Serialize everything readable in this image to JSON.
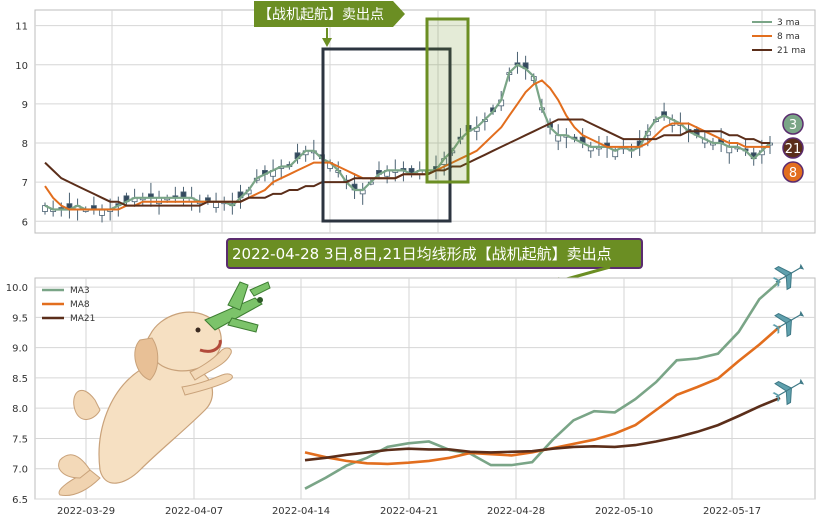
{
  "colors": {
    "ma3": "#7aa587",
    "ma8": "#e26e1e",
    "ma21": "#5b2e1a",
    "candle_up": "#ffffff",
    "candle_down": "#34495e",
    "candle_edge": "#4a6172",
    "sell_tag_fill": "#6b8e23",
    "banner_fill": "#6b8e23",
    "banner_edge": "#5b2c6f",
    "box_dark": "#2c3440",
    "box_green": "#6b8e23",
    "grid": "#d6d6d6"
  },
  "sell_tag": "【战机起航】卖出点",
  "banner": "2022-04-28 3日,8日,21日均线形成【战机起航】卖出点",
  "icons": [
    "arrow-down-icon",
    "arrow-icon",
    "dog-illustration-icon",
    "toy-plane-icon",
    "plane-icon"
  ],
  "chart_data": [
    {
      "type": "line",
      "panel": "top",
      "yticks": [
        6,
        7,
        8,
        9,
        10,
        11
      ],
      "ylim": [
        5.7,
        11.4
      ],
      "n": 90,
      "legend": [
        "3 ma",
        "8 ma",
        "21 ma"
      ],
      "legend_position": "top-right",
      "markers": [
        "3",
        "21",
        "8"
      ],
      "series": [
        {
          "name": "3 ma",
          "values": [
            6.4,
            6.3,
            6.3,
            6.3,
            6.4,
            6.3,
            6.3,
            6.3,
            6.3,
            6.4,
            6.5,
            6.6,
            6.6,
            6.6,
            6.6,
            6.6,
            6.6,
            6.6,
            6.6,
            6.5,
            6.5,
            6.5,
            6.5,
            6.4,
            6.6,
            6.8,
            7.1,
            7.2,
            7.3,
            7.4,
            7.4,
            7.6,
            7.8,
            7.8,
            7.6,
            7.5,
            7.3,
            7.0,
            6.8,
            6.8,
            7.0,
            7.2,
            7.3,
            7.3,
            7.3,
            7.2,
            7.3,
            7.3,
            7.3,
            7.6,
            7.8,
            8.1,
            8.3,
            8.4,
            8.6,
            8.8,
            9.1,
            9.8,
            10.0,
            9.9,
            9.7,
            8.9,
            8.4,
            8.2,
            8.2,
            8.1,
            8.0,
            7.9,
            7.9,
            7.9,
            7.8,
            7.9,
            7.8,
            7.9,
            8.3,
            8.6,
            8.7,
            8.6,
            8.5,
            8.3,
            8.2,
            8.1,
            8.0,
            8.0,
            7.9,
            7.9,
            7.8,
            7.6,
            7.8,
            8.0
          ]
        },
        {
          "name": "8 ma",
          "values": [
            6.9,
            6.6,
            6.4,
            6.3,
            6.3,
            6.3,
            6.3,
            6.3,
            6.3,
            6.3,
            6.4,
            6.4,
            6.5,
            6.5,
            6.5,
            6.5,
            6.5,
            6.5,
            6.5,
            6.5,
            6.5,
            6.5,
            6.5,
            6.5,
            6.5,
            6.6,
            6.7,
            6.8,
            7.0,
            7.1,
            7.2,
            7.3,
            7.4,
            7.5,
            7.5,
            7.5,
            7.4,
            7.3,
            7.2,
            7.1,
            7.1,
            7.1,
            7.1,
            7.1,
            7.2,
            7.2,
            7.2,
            7.2,
            7.3,
            7.4,
            7.5,
            7.6,
            7.7,
            7.8,
            8.0,
            8.2,
            8.4,
            8.7,
            9.0,
            9.3,
            9.5,
            9.6,
            9.4,
            9.1,
            8.7,
            8.4,
            8.2,
            8.1,
            8.0,
            7.9,
            7.9,
            7.9,
            7.9,
            7.9,
            8.0,
            8.2,
            8.4,
            8.5,
            8.5,
            8.5,
            8.4,
            8.3,
            8.2,
            8.1,
            8.0,
            8.0,
            7.9,
            7.9,
            7.9,
            7.9
          ]
        },
        {
          "name": "21 ma",
          "values": [
            7.5,
            7.3,
            7.1,
            7.0,
            6.9,
            6.8,
            6.7,
            6.6,
            6.5,
            6.5,
            6.4,
            6.4,
            6.4,
            6.4,
            6.4,
            6.4,
            6.4,
            6.4,
            6.4,
            6.4,
            6.5,
            6.5,
            6.5,
            6.5,
            6.5,
            6.6,
            6.6,
            6.6,
            6.7,
            6.7,
            6.8,
            6.8,
            6.9,
            6.9,
            7.0,
            7.0,
            7.0,
            7.0,
            7.1,
            7.1,
            7.1,
            7.1,
            7.1,
            7.1,
            7.2,
            7.2,
            7.2,
            7.2,
            7.3,
            7.3,
            7.4,
            7.4,
            7.5,
            7.6,
            7.7,
            7.8,
            7.9,
            8.0,
            8.1,
            8.2,
            8.3,
            8.4,
            8.5,
            8.6,
            8.6,
            8.6,
            8.6,
            8.5,
            8.4,
            8.3,
            8.2,
            8.1,
            8.1,
            8.1,
            8.1,
            8.1,
            8.2,
            8.2,
            8.2,
            8.3,
            8.3,
            8.3,
            8.3,
            8.3,
            8.2,
            8.2,
            8.1,
            8.1,
            8.0,
            8.0
          ]
        }
      ]
    },
    {
      "type": "line",
      "panel": "bottom",
      "xtick_labels": [
        "2022-03-29",
        "2022-04-07",
        "2022-04-14",
        "2022-04-21",
        "2022-04-28",
        "2022-05-10",
        "2022-05-17"
      ],
      "yticks": [
        6.5,
        7.0,
        7.5,
        8.0,
        8.5,
        9.0,
        9.5,
        10.0
      ],
      "ylim": [
        6.5,
        10.15
      ],
      "legend": [
        "MA3",
        "MA8",
        "MA21"
      ],
      "legend_position": "upper-left",
      "x": [
        "2022-04-14",
        "2022-04-15",
        "2022-04-18",
        "2022-04-19",
        "2022-04-20",
        "2022-04-21",
        "2022-04-22",
        "2022-04-25",
        "2022-04-26",
        "2022-04-27",
        "2022-04-28",
        "2022-04-29",
        "2022-05-05",
        "2022-05-06",
        "2022-05-09",
        "2022-05-10",
        "2022-05-11",
        "2022-05-12",
        "2022-05-13",
        "2022-05-16",
        "2022-05-17",
        "2022-05-18",
        "2022-05-19",
        "2022-05-20"
      ],
      "series": [
        {
          "name": "MA3",
          "values": [
            6.67,
            6.85,
            7.05,
            7.18,
            7.36,
            7.42,
            7.45,
            7.31,
            7.25,
            7.06,
            7.06,
            7.11,
            7.48,
            7.8,
            7.95,
            7.93,
            8.15,
            8.43,
            8.79,
            8.82,
            8.9,
            9.26,
            9.8,
            10.1
          ]
        },
        {
          "name": "MA8",
          "values": [
            7.27,
            7.19,
            7.13,
            7.09,
            7.08,
            7.1,
            7.13,
            7.18,
            7.26,
            7.24,
            7.22,
            7.27,
            7.34,
            7.41,
            7.48,
            7.58,
            7.72,
            7.97,
            8.22,
            8.35,
            8.49,
            8.78,
            9.05,
            9.35
          ]
        },
        {
          "name": "MA21",
          "values": [
            7.14,
            7.18,
            7.23,
            7.27,
            7.31,
            7.33,
            7.32,
            7.32,
            7.28,
            7.27,
            7.28,
            7.29,
            7.33,
            7.36,
            7.37,
            7.36,
            7.39,
            7.45,
            7.52,
            7.61,
            7.72,
            7.87,
            8.03,
            8.17
          ]
        }
      ]
    }
  ]
}
